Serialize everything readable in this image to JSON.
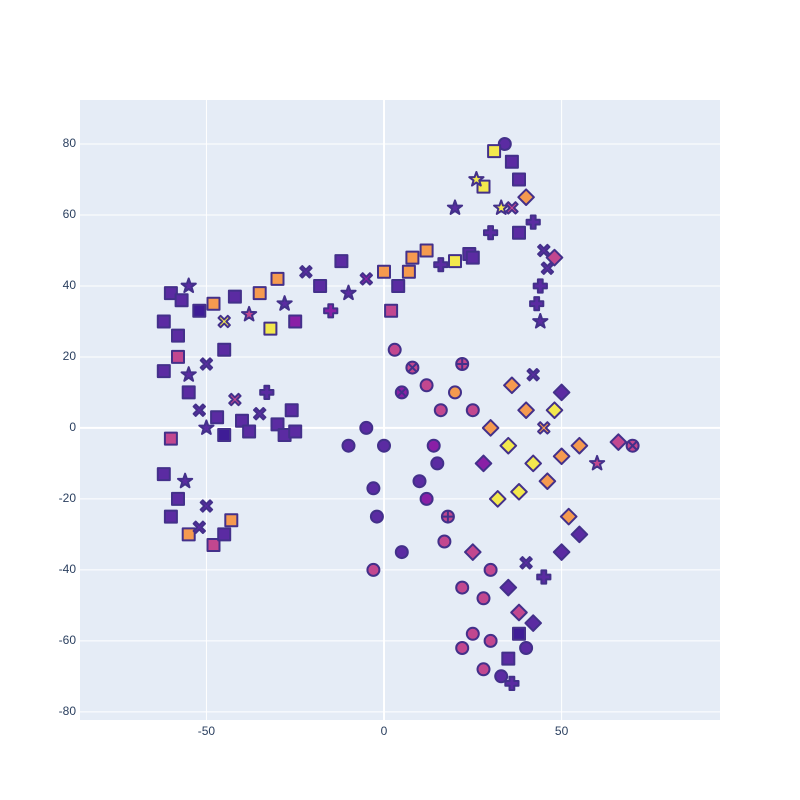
{
  "chart_data": {
    "type": "scatter",
    "xlim": [
      -85.6,
      94.6
    ],
    "ylim": [
      -82.3,
      92.4
    ],
    "xticks": [
      -50,
      0,
      50
    ],
    "yticks": [
      -80,
      -60,
      -40,
      -20,
      0,
      20,
      40,
      60,
      80
    ],
    "grid": true,
    "background": "#e5ecf6",
    "marker_line_color": "#43308a",
    "x": [
      -60,
      -57,
      -55,
      -52,
      -48,
      -45,
      -42,
      -38,
      -62,
      -58,
      -35,
      -30,
      -28,
      -25,
      -22,
      -18,
      -15,
      -12,
      -10,
      -32,
      -5,
      0,
      4,
      8,
      12,
      16,
      20,
      24,
      7,
      2,
      30,
      33,
      36,
      38,
      34,
      28,
      40,
      42,
      45,
      31,
      46,
      44,
      43,
      44,
      48,
      38,
      25,
      20,
      26,
      36,
      -55,
      -52,
      -50,
      -47,
      -45,
      -42,
      -40,
      -38,
      -35,
      -30,
      -28,
      -26,
      -58,
      -55,
      -62,
      -50,
      -45,
      -33,
      -25,
      -60,
      -60,
      -58,
      -55,
      -52,
      -48,
      -45,
      -50,
      -56,
      -62,
      -43,
      -10,
      -5,
      0,
      -3,
      5,
      3,
      -2,
      -3,
      5,
      8,
      10,
      12,
      15,
      18,
      14,
      16,
      20,
      22,
      12,
      17,
      30,
      35,
      40,
      42,
      45,
      48,
      38,
      32,
      46,
      50,
      28,
      25,
      36,
      42,
      50,
      55,
      60,
      66,
      70,
      52,
      25,
      30,
      35,
      40,
      45,
      50,
      55,
      28,
      38,
      22,
      30,
      35,
      40,
      33,
      28,
      38,
      25,
      36,
      42,
      22
    ],
    "values": [
      38,
      36,
      40,
      33,
      35,
      30,
      37,
      32,
      30,
      26,
      38,
      42,
      35,
      30,
      44,
      40,
      33,
      47,
      38,
      28,
      42,
      44,
      40,
      48,
      50,
      46,
      47,
      49,
      44,
      33,
      55,
      62,
      75,
      70,
      80,
      68,
      65,
      58,
      50,
      78,
      45,
      40,
      35,
      30,
      48,
      55,
      48,
      62,
      70,
      62,
      10,
      5,
      0,
      3,
      -2,
      8,
      2,
      -1,
      4,
      1,
      -2,
      5,
      20,
      15,
      16,
      18,
      22,
      10,
      -1,
      -3,
      -25,
      -20,
      -30,
      -28,
      -33,
      -30,
      -22,
      -15,
      -13,
      -26,
      -5,
      0,
      -5,
      -17,
      10,
      22,
      -25,
      -40,
      -35,
      17,
      -15,
      -20,
      -10,
      -25,
      -5,
      5,
      10,
      18,
      12,
      -32,
      0,
      -5,
      5,
      -10,
      0,
      5,
      -18,
      -20,
      -15,
      -8,
      -10,
      5,
      12,
      15,
      10,
      -5,
      -10,
      -4,
      -5,
      -25,
      -35,
      -40,
      -45,
      -38,
      -42,
      -35,
      -30,
      -48,
      -52,
      -45,
      -60,
      -65,
      -62,
      -70,
      -68,
      -58,
      -58,
      -72,
      -55,
      -62
    ],
    "symbols": [
      "square",
      "square",
      "star",
      "square",
      "square",
      "x",
      "square",
      "star",
      "square",
      "square",
      "square",
      "square",
      "star",
      "square",
      "x",
      "square",
      "cross",
      "square",
      "star",
      "square",
      "x",
      "square",
      "square",
      "square",
      "square",
      "cross",
      "square",
      "square",
      "square",
      "square",
      "cross",
      "star",
      "square",
      "square",
      "circle",
      "square",
      "diamond",
      "cross",
      "x",
      "square",
      "x",
      "cross",
      "cross",
      "star",
      "diamond",
      "square",
      "square",
      "star",
      "star",
      "x",
      "square",
      "x",
      "star",
      "square",
      "square",
      "x",
      "square",
      "square",
      "x",
      "square",
      "square",
      "square",
      "square",
      "star",
      "square",
      "x",
      "square",
      "cross",
      "square",
      "square",
      "square",
      "square",
      "square",
      "x",
      "square",
      "square",
      "x",
      "star",
      "square",
      "square",
      "circle",
      "circle",
      "circle",
      "circle",
      "circle-x",
      "circle",
      "circle",
      "circle",
      "circle",
      "circle-x",
      "circle",
      "circle",
      "circle",
      "circle-cross",
      "circle",
      "circle",
      "circle",
      "circle-cross",
      "circle",
      "circle",
      "diamond",
      "diamond",
      "diamond",
      "diamond",
      "x",
      "diamond",
      "diamond",
      "diamond",
      "diamond",
      "diamond",
      "diamond",
      "circle",
      "diamond",
      "x",
      "diamond",
      "diamond",
      "star",
      "diamond",
      "circle-x",
      "diamond",
      "diamond",
      "circle",
      "diamond",
      "x",
      "cross",
      "diamond",
      "diamond",
      "circle",
      "diamond",
      "circle",
      "circle",
      "square",
      "circle",
      "circle",
      "circle",
      "square",
      "circle",
      "cross",
      "diamond",
      "circle"
    ],
    "colors": [
      "#5b2ba2",
      "#5b2ba2",
      "#5b2ba2",
      "#3e1c96",
      "#f59a4f",
      "#f3e84d",
      "#5b2ba2",
      "#c2478f",
      "#5b2ba2",
      "#5b2ba2",
      "#f59a4f",
      "#f59a4f",
      "#5b2ba2",
      "#8a1fa6",
      "#5b2ba2",
      "#5b2ba2",
      "#8a1fa6",
      "#5b2ba2",
      "#5b2ba2",
      "#f3e84d",
      "#8a1fa6",
      "#f59a4f",
      "#5b2ba2",
      "#f59a4f",
      "#f59a4f",
      "#5b2ba2",
      "#f3e84d",
      "#5b2ba2",
      "#f59a4f",
      "#c2478f",
      "#5b2ba2",
      "#f3e84d",
      "#5b2ba2",
      "#5b2ba2",
      "#5b2ba2",
      "#f3e84d",
      "#f59a4f",
      "#5b2ba2",
      "#5b2ba2",
      "#f3e84d",
      "#5b2ba2",
      "#5b2ba2",
      "#5b2ba2",
      "#5b2ba2",
      "#c2478f",
      "#5b2ba2",
      "#5b2ba2",
      "#5b2ba2",
      "#f3e84d",
      "#c2478f",
      "#5b2ba2",
      "#5b2ba2",
      "#5b2ba2",
      "#5b2ba2",
      "#3e1c96",
      "#c2478f",
      "#5b2ba2",
      "#5b2ba2",
      "#5b2ba2",
      "#5b2ba2",
      "#5b2ba2",
      "#5b2ba2",
      "#c2478f",
      "#5b2ba2",
      "#5b2ba2",
      "#5b2ba2",
      "#5b2ba2",
      "#5b2ba2",
      "#5b2ba2",
      "#c2478f",
      "#5b2ba2",
      "#5b2ba2",
      "#f59a4f",
      "#5b2ba2",
      "#c2478f",
      "#5b2ba2",
      "#5b2ba2",
      "#5b2ba2",
      "#5b2ba2",
      "#f59a4f",
      "#5b2ba2",
      "#5b2ba2",
      "#5b2ba2",
      "#5b2ba2",
      "#8a1fa6",
      "#c2478f",
      "#5b2ba2",
      "#c2478f",
      "#5b2ba2",
      "#c2478f",
      "#5b2ba2",
      "#8a1fa6",
      "#5b2ba2",
      "#c2478f",
      "#8a1fa6",
      "#c2478f",
      "#f59a4f",
      "#c2478f",
      "#c2478f",
      "#c2478f",
      "#f59a4f",
      "#f3e84d",
      "#f59a4f",
      "#f3e84d",
      "#f59a4f",
      "#f3e84d",
      "#f3e84d",
      "#f3e84d",
      "#f59a4f",
      "#f59a4f",
      "#8a1fa6",
      "#c2478f",
      "#f59a4f",
      "#5b2ba2",
      "#5b2ba2",
      "#f59a4f",
      "#c2478f",
      "#c2478f",
      "#c2478f",
      "#f59a4f",
      "#c2478f",
      "#c2478f",
      "#5b2ba2",
      "#5b2ba2",
      "#5b2ba2",
      "#5b2ba2",
      "#5b2ba2",
      "#c2478f",
      "#c2478f",
      "#c2478f",
      "#c2478f",
      "#5b2ba2",
      "#5b2ba2",
      "#5b2ba2",
      "#c2478f",
      "#3e1c96",
      "#c2478f",
      "#5b2ba2",
      "#5b2ba2",
      "#c2478f"
    ]
  }
}
